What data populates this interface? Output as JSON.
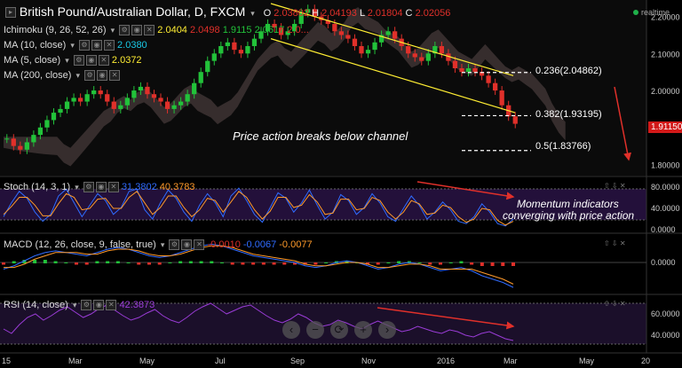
{
  "header": {
    "title": "British Pound/Australian Dollar, D, FXCM",
    "ohlc": {
      "o_label": "O",
      "o": "2.03802",
      "h_label": "H",
      "h": "2.04193",
      "l_label": "L",
      "l": "2.01804",
      "c_label": "C",
      "c": "2.02056"
    },
    "realtime": "realtime"
  },
  "indicators": {
    "ichimoku": {
      "label": "Ichimoku (9, 26, 52, 26)",
      "v1": "2.0404",
      "v2": "2.0498",
      "v3": "1.9115",
      "v4": "2.0617",
      "v5": "2.0..."
    },
    "ma10": {
      "label": "MA (10, close)",
      "value": "2.0380"
    },
    "ma5": {
      "label": "MA (5, close)",
      "value": "2.0372"
    },
    "ma200": {
      "label": "MA (200, close)"
    },
    "stoch": {
      "label": "Stoch (14, 3, 1)",
      "k": "31.3802",
      "d": "40.3783"
    },
    "macd": {
      "label": "MACD (12, 26, close, 9, false, true)",
      "hist": "-0.0010",
      "macd": "-0.0067",
      "signal": "-0.0077"
    },
    "rsi": {
      "label": "RSI (14, close)",
      "value": "42.3873"
    }
  },
  "annotations": {
    "breakout": "Price action breaks below channel",
    "momentum_line1": "Momentum indicators",
    "momentum_line2": "converging with price action"
  },
  "fib_levels": [
    {
      "label": "0.236(2.04862)",
      "price": 2.04862
    },
    {
      "label": "0.382(1.93195)",
      "price": 1.93195
    },
    {
      "label": "0.5(1.83766)",
      "price": 1.83766
    }
  ],
  "last_price": "1.91150",
  "colors": {
    "up": "#22c23a",
    "down": "#e0302a",
    "channel": "#ffee33",
    "cloud_bull": "#3e8a3e",
    "cloud_bear": "#8a3030",
    "stoch_k": "#2f6bff",
    "stoch_d": "#ff9a2a",
    "rsi": "#9a3cd6",
    "annotation_arrow": "#e0302a"
  },
  "zoom_controls": [
    "‹",
    "−",
    "⟳",
    "+",
    "›"
  ],
  "chart_data": [
    {
      "type": "candlestick",
      "title": "British Pound/Australian Dollar, D, FXCM",
      "x_ticks": [
        "15",
        "Mar",
        "May",
        "Jul",
        "Sep",
        "Nov",
        "2016",
        "Mar",
        "May",
        "20"
      ],
      "y_ticks": [
        "2.20000",
        "2.10000",
        "2.00000",
        "1.90000",
        "1.80000"
      ],
      "ylim": [
        1.77,
        2.235
      ],
      "close_series": [
        1.87,
        1.85,
        1.84,
        1.86,
        1.88,
        1.9,
        1.92,
        1.94,
        1.95,
        1.97,
        1.98,
        1.97,
        1.99,
        2.0,
        1.99,
        1.97,
        1.95,
        1.96,
        1.98,
        2.0,
        2.01,
        1.99,
        1.98,
        1.97,
        1.95,
        1.96,
        1.97,
        1.99,
        2.02,
        2.05,
        2.08,
        2.1,
        2.12,
        2.13,
        2.11,
        2.1,
        2.12,
        2.14,
        2.16,
        2.18,
        2.17,
        2.15,
        2.16,
        2.18,
        2.21,
        2.22,
        2.2,
        2.19,
        2.18,
        2.16,
        2.15,
        2.14,
        2.12,
        2.1,
        2.11,
        2.13,
        2.15,
        2.16,
        2.14,
        2.12,
        2.1,
        2.09,
        2.08,
        2.1,
        2.12,
        2.1,
        2.08,
        2.06,
        2.05,
        2.06,
        2.05,
        2.04,
        2.02,
        2.0,
        1.96,
        1.93,
        1.91
      ],
      "channel_upper": {
        "start_price": 2.235,
        "end_price": 2.04
      },
      "channel_lower": {
        "start_price": 2.14,
        "end_price": 1.94
      }
    },
    {
      "type": "line",
      "title": "Stoch (14, 3, 1)",
      "y_ticks": [
        "80.0000",
        "40.0000",
        "0.0000"
      ],
      "ylim": [
        0,
        100
      ],
      "series": [
        {
          "name": "%K",
          "values": [
            30,
            60,
            85,
            70,
            40,
            20,
            35,
            75,
            90,
            60,
            30,
            55,
            80,
            65,
            35,
            50,
            85,
            90,
            45,
            25,
            60,
            88,
            70,
            40,
            20,
            55,
            80,
            60,
            30,
            75,
            92,
            65,
            35,
            18,
            50,
            82,
            70,
            40,
            60,
            88,
            55,
            25,
            40,
            78,
            65,
            35,
            50,
            80,
            60,
            30,
            20,
            48,
            75,
            55,
            25,
            40,
            62,
            45,
            20,
            15,
            30,
            58,
            40,
            15,
            10,
            25
          ]
        },
        {
          "name": "%D",
          "values": [
            35,
            52,
            72,
            72,
            55,
            32,
            32,
            58,
            80,
            72,
            45,
            48,
            68,
            70,
            48,
            48,
            72,
            85,
            60,
            35,
            50,
            75,
            75,
            50,
            30,
            45,
            70,
            65,
            40,
            62,
            85,
            72,
            45,
            25,
            42,
            72,
            72,
            50,
            55,
            78,
            62,
            35,
            38,
            68,
            68,
            45,
            48,
            72,
            65,
            40,
            25,
            40,
            65,
            58,
            35,
            38,
            55,
            50,
            30,
            18,
            25,
            48,
            45,
            22,
            12,
            20
          ]
        }
      ]
    },
    {
      "type": "bar",
      "title": "MACD (12, 26, close, 9, false, true)",
      "y_ticks": [
        "0.0000"
      ],
      "series": [
        {
          "name": "MACD",
          "values": [
            -0.004,
            -0.002,
            0.001,
            0.004,
            0.006,
            0.007,
            0.006,
            0.005,
            0.004,
            0.006,
            0.008,
            0.009,
            0.008,
            0.006,
            0.004,
            0.003,
            0.004,
            0.006,
            0.008,
            0.01,
            0.011,
            0.01,
            0.008,
            0.006,
            0.004,
            0.003,
            0.002,
            0.001,
            0.0,
            -0.002,
            -0.003,
            -0.002,
            0.0,
            0.001,
            0.0,
            -0.002,
            -0.004,
            -0.003,
            -0.001,
            0.0,
            -0.001,
            -0.003,
            -0.005,
            -0.004,
            -0.003,
            -0.005,
            -0.008,
            -0.01,
            -0.012,
            -0.015
          ]
        },
        {
          "name": "Signal",
          "values": [
            -0.003,
            -0.003,
            -0.001,
            0.002,
            0.004,
            0.006,
            0.006,
            0.006,
            0.005,
            0.005,
            0.007,
            0.008,
            0.008,
            0.007,
            0.005,
            0.004,
            0.004,
            0.005,
            0.007,
            0.009,
            0.01,
            0.01,
            0.009,
            0.007,
            0.005,
            0.004,
            0.003,
            0.002,
            0.001,
            -0.001,
            -0.002,
            -0.002,
            -0.001,
            0.0,
            0.0,
            -0.001,
            -0.003,
            -0.003,
            -0.002,
            -0.001,
            -0.001,
            -0.002,
            -0.004,
            -0.004,
            -0.004,
            -0.004,
            -0.006,
            -0.008,
            -0.01,
            -0.013
          ]
        }
      ]
    },
    {
      "type": "line",
      "title": "RSI (14, close)",
      "y_ticks": [
        "60.0000",
        "40.0000"
      ],
      "ylim": [
        20,
        80
      ],
      "series": [
        {
          "name": "RSI",
          "values": [
            45,
            40,
            50,
            58,
            62,
            55,
            60,
            66,
            70,
            64,
            58,
            62,
            68,
            72,
            66,
            60,
            55,
            58,
            63,
            67,
            60,
            55,
            52,
            58,
            65,
            70,
            74,
            68,
            62,
            66,
            70,
            72,
            66,
            60,
            55,
            52,
            56,
            62,
            58,
            52,
            48,
            50,
            55,
            52,
            48,
            45,
            50,
            54,
            50,
            46,
            42,
            44,
            48,
            45,
            42,
            40,
            44,
            42,
            38,
            36,
            40,
            42,
            38,
            34,
            32
          ]
        }
      ]
    }
  ]
}
